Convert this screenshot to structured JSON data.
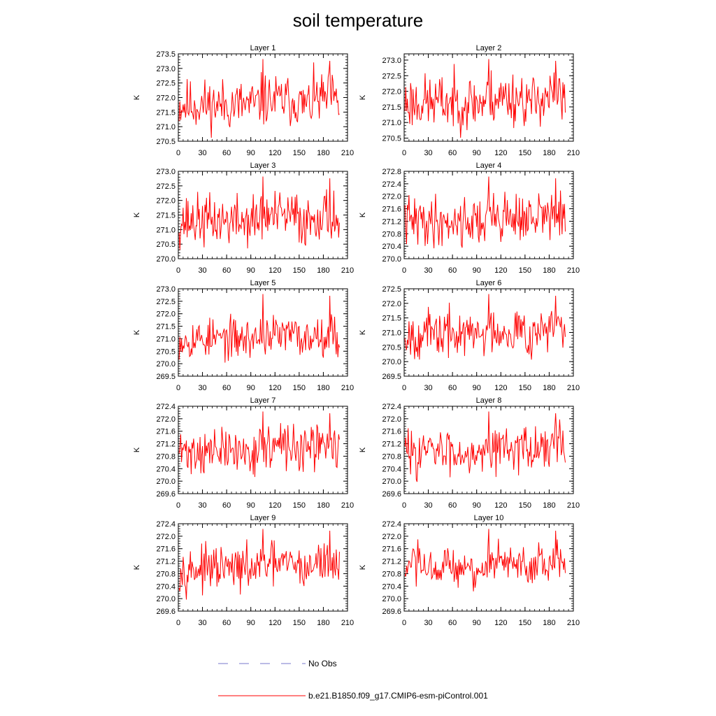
{
  "title": "soil temperature",
  "colors": {
    "series": "#ff0000",
    "obs": "#7777cc",
    "axis": "#000000"
  },
  "legend": [
    {
      "label": "No Obs",
      "style": "dashed",
      "color": "#7777cc"
    },
    {
      "label": "b.e21.B1850.f09_g17.CMIP6-esm-piControl.001",
      "style": "solid",
      "color": "#ff0000"
    }
  ],
  "chart_data": [
    {
      "type": "line",
      "title": "Layer 1",
      "xlabel": "",
      "ylabel": "K",
      "xlim": [
        0,
        210
      ],
      "ylim": [
        270.5,
        273.5
      ],
      "xticks": [
        0,
        30,
        60,
        90,
        120,
        150,
        180,
        210
      ],
      "yticks": [
        270.5,
        271.0,
        271.5,
        272.0,
        272.5,
        273.0,
        273.5
      ],
      "yticklabels": [
        "270.5",
        "271.0",
        "271.5",
        "272.0",
        "272.5",
        "273.0",
        "273.5"
      ],
      "x_range": [
        1,
        200
      ],
      "mean": 271.75,
      "amp": 0.55,
      "seed": 11
    },
    {
      "type": "line",
      "title": "Layer 2",
      "xlabel": "",
      "ylabel": "K",
      "xlim": [
        0,
        210
      ],
      "ylim": [
        270.4,
        273.2
      ],
      "xticks": [
        0,
        30,
        60,
        90,
        120,
        150,
        180,
        210
      ],
      "yticks": [
        270.5,
        271.0,
        271.5,
        272.0,
        272.5,
        273.0
      ],
      "yticklabels": [
        "270.5",
        "271.0",
        "271.5",
        "272.0",
        "272.5",
        "273.0"
      ],
      "x_range": [
        1,
        200
      ],
      "mean": 271.65,
      "amp": 0.55,
      "seed": 23
    },
    {
      "type": "line",
      "title": "Layer 3",
      "xlabel": "",
      "ylabel": "K",
      "xlim": [
        0,
        210
      ],
      "ylim": [
        270.0,
        273.0
      ],
      "xticks": [
        0,
        30,
        60,
        90,
        120,
        150,
        180,
        210
      ],
      "yticks": [
        270.0,
        270.5,
        271.0,
        271.5,
        272.0,
        272.5,
        273.0
      ],
      "yticklabels": [
        "270.0",
        "270.5",
        "271.0",
        "271.5",
        "272.0",
        "272.5",
        "273.0"
      ],
      "x_range": [
        1,
        200
      ],
      "mean": 271.3,
      "amp": 0.55,
      "seed": 37
    },
    {
      "type": "line",
      "title": "Layer 4",
      "xlabel": "",
      "ylabel": "K",
      "xlim": [
        0,
        210
      ],
      "ylim": [
        270.0,
        272.8
      ],
      "xticks": [
        0,
        30,
        60,
        90,
        120,
        150,
        180,
        210
      ],
      "yticks": [
        270.0,
        270.4,
        270.8,
        271.2,
        271.6,
        272.0,
        272.4,
        272.8
      ],
      "yticklabels": [
        "270.0",
        "270.4",
        "270.8",
        "271.2",
        "271.6",
        "272.0",
        "272.4",
        "272.8"
      ],
      "x_range": [
        1,
        200
      ],
      "mean": 271.2,
      "amp": 0.5,
      "seed": 41
    },
    {
      "type": "line",
      "title": "Layer 5",
      "xlabel": "",
      "ylabel": "K",
      "xlim": [
        0,
        210
      ],
      "ylim": [
        269.5,
        273.0
      ],
      "xticks": [
        0,
        30,
        60,
        90,
        120,
        150,
        180,
        210
      ],
      "yticks": [
        269.5,
        270.0,
        270.5,
        271.0,
        271.5,
        272.0,
        272.5,
        273.0
      ],
      "yticklabels": [
        "269.5",
        "270.0",
        "270.5",
        "271.0",
        "271.5",
        "272.0",
        "272.5",
        "273.0"
      ],
      "x_range": [
        1,
        200
      ],
      "mean": 271.0,
      "amp": 0.5,
      "seed": 53
    },
    {
      "type": "line",
      "title": "Layer 6",
      "xlabel": "",
      "ylabel": "K",
      "xlim": [
        0,
        210
      ],
      "ylim": [
        269.5,
        272.5
      ],
      "xticks": [
        0,
        30,
        60,
        90,
        120,
        150,
        180,
        210
      ],
      "yticks": [
        269.5,
        270.0,
        270.5,
        271.0,
        271.5,
        272.0,
        272.5
      ],
      "yticklabels": [
        "269.5",
        "270.0",
        "270.5",
        "271.0",
        "271.5",
        "272.0",
        "272.5"
      ],
      "x_range": [
        1,
        200
      ],
      "mean": 270.95,
      "amp": 0.5,
      "seed": 67
    },
    {
      "type": "line",
      "title": "Layer 7",
      "xlabel": "",
      "ylabel": "K",
      "xlim": [
        0,
        210
      ],
      "ylim": [
        269.6,
        272.4
      ],
      "xticks": [
        0,
        30,
        60,
        90,
        120,
        150,
        180,
        210
      ],
      "yticks": [
        269.6,
        270.0,
        270.4,
        270.8,
        271.2,
        271.6,
        272.0,
        272.4
      ],
      "yticklabels": [
        "269.6",
        "270.0",
        "270.4",
        "270.8",
        "271.2",
        "271.6",
        "272.0",
        "272.4"
      ],
      "x_range": [
        1,
        200
      ],
      "mean": 270.95,
      "amp": 0.45,
      "seed": 71
    },
    {
      "type": "line",
      "title": "Layer 8",
      "xlabel": "",
      "ylabel": "K",
      "xlim": [
        0,
        210
      ],
      "ylim": [
        269.6,
        272.4
      ],
      "xticks": [
        0,
        30,
        60,
        90,
        120,
        150,
        180,
        210
      ],
      "yticks": [
        269.6,
        270.0,
        270.4,
        270.8,
        271.2,
        271.6,
        272.0,
        272.4
      ],
      "yticklabels": [
        "269.6",
        "270.0",
        "270.4",
        "270.8",
        "271.2",
        "271.6",
        "272.0",
        "272.4"
      ],
      "x_range": [
        1,
        200
      ],
      "mean": 270.95,
      "amp": 0.45,
      "seed": 83
    },
    {
      "type": "line",
      "title": "Layer 9",
      "xlabel": "",
      "ylabel": "K",
      "xlim": [
        0,
        210
      ],
      "ylim": [
        269.6,
        272.4
      ],
      "xticks": [
        0,
        30,
        60,
        90,
        120,
        150,
        180,
        210
      ],
      "yticks": [
        269.6,
        270.0,
        270.4,
        270.8,
        271.2,
        271.6,
        272.0,
        272.4
      ],
      "yticklabels": [
        "269.6",
        "270.0",
        "270.4",
        "270.8",
        "271.2",
        "271.6",
        "272.0",
        "272.4"
      ],
      "x_range": [
        1,
        200
      ],
      "mean": 270.95,
      "amp": 0.42,
      "seed": 97
    },
    {
      "type": "line",
      "title": "Layer 10",
      "xlabel": "",
      "ylabel": "K",
      "xlim": [
        0,
        210
      ],
      "ylim": [
        269.6,
        272.4
      ],
      "xticks": [
        0,
        30,
        60,
        90,
        120,
        150,
        180,
        210
      ],
      "yticks": [
        269.6,
        270.0,
        270.4,
        270.8,
        271.2,
        271.6,
        272.0,
        272.4
      ],
      "yticklabels": [
        "269.6",
        "270.0",
        "270.4",
        "270.8",
        "271.2",
        "271.6",
        "272.0",
        "272.4"
      ],
      "x_range": [
        1,
        200
      ],
      "mean": 270.95,
      "amp": 0.42,
      "seed": 103
    }
  ]
}
